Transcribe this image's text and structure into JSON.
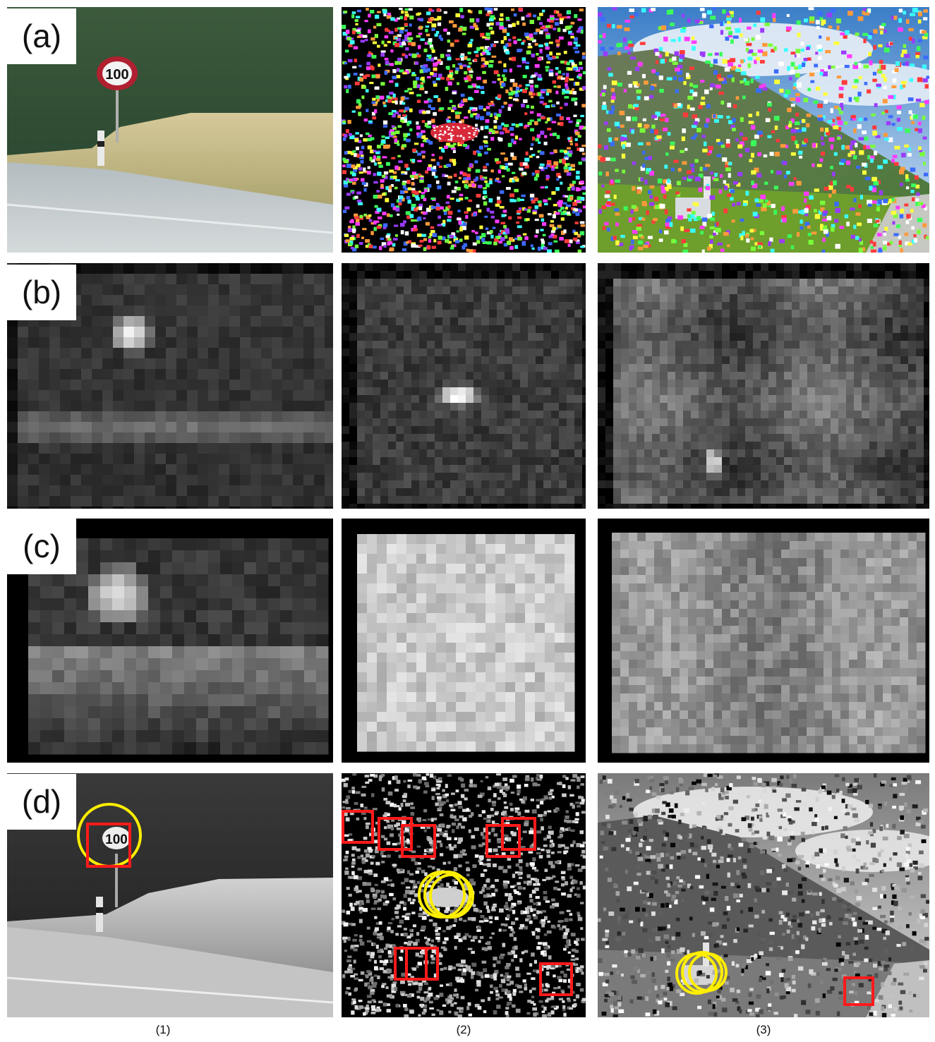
{
  "row_labels": [
    "(a)",
    "(b)",
    "(c)",
    "(d)"
  ],
  "column_labels": [
    "(1)",
    "(2)",
    "(3)"
  ],
  "sign_text": "100",
  "colors": {
    "detection_circle": "#ffee00",
    "false_box": "#ff1a1a"
  }
}
